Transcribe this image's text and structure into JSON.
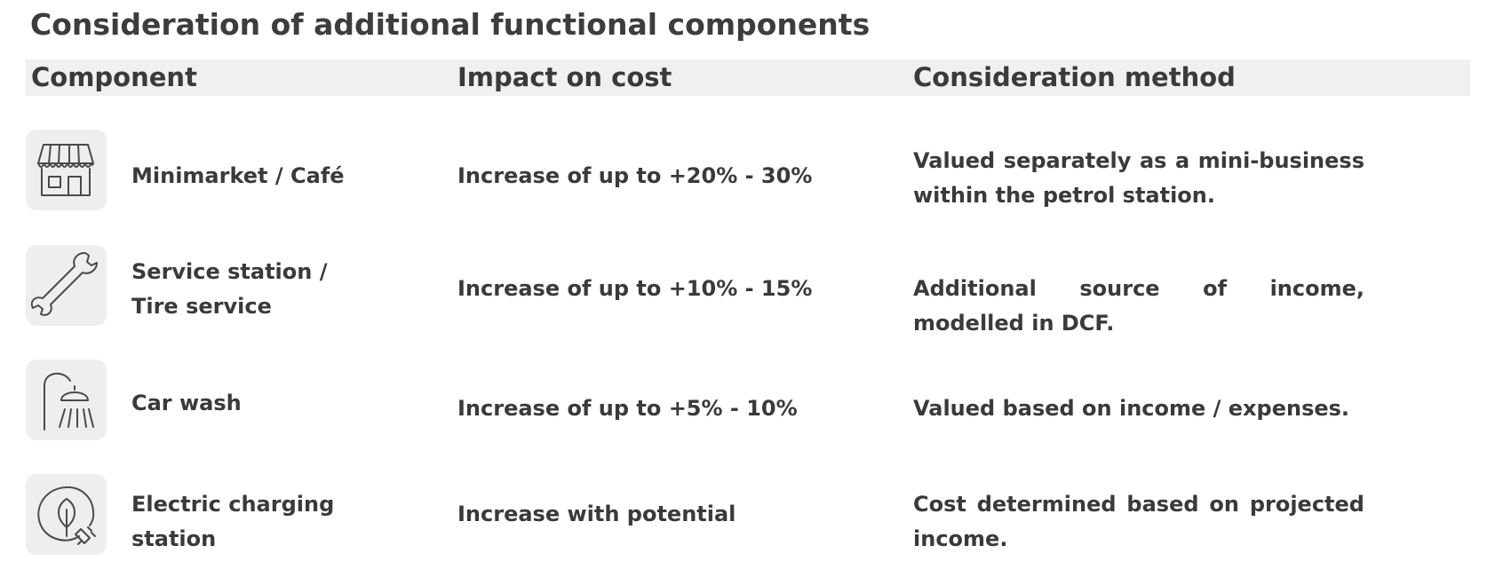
{
  "title": "Consideration of additional functional components",
  "header": {
    "component": "Component",
    "impact": "Impact on cost",
    "method": "Consideration method"
  },
  "rows": [
    {
      "icon": "store-icon",
      "component": "Minimarket / Café",
      "impact": "Increase of up to +20% - 30%",
      "method": "Valued separately as a mini-business within the petrol station."
    },
    {
      "icon": "wrench-icon",
      "component": "Service station / Tire service",
      "impact": "Increase of up to +10% - 15%",
      "method": "Additional source of income, modelled in DCF."
    },
    {
      "icon": "shower-icon",
      "component": "Car wash",
      "impact": "Increase of up to +5% - 10%",
      "method": "Valued based on income / expenses."
    },
    {
      "icon": "eco-plug-icon",
      "component": "Electric charging station",
      "impact": "Increase with potential",
      "method": "Cost determined based on projected income."
    }
  ],
  "colors": {
    "text": "#3a3a3a",
    "header_bg": "#f0f0f0",
    "icon_bg": "#eeeeee",
    "icon_stroke": "#4a4a4a"
  }
}
